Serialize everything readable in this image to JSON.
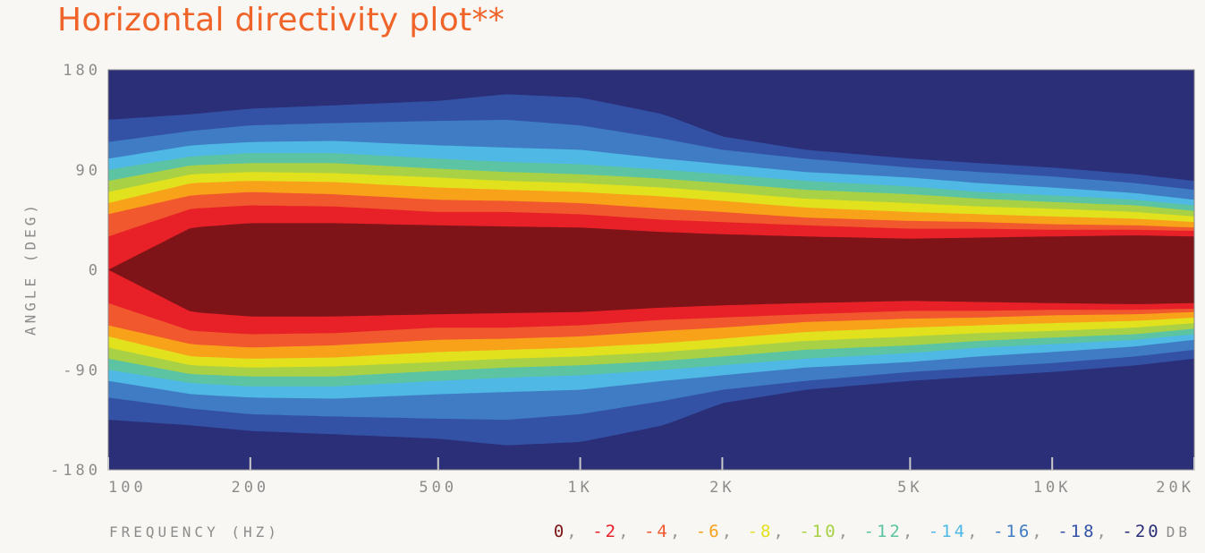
{
  "title": "Horizontal directivity plot**",
  "chart_data": {
    "type": "heatmap",
    "title": "Horizontal directivity plot**",
    "xlabel": "FREQUENCY (HZ)",
    "ylabel": "ANGLE (DEG)",
    "x_scale": "log",
    "xlim": [
      100,
      20000
    ],
    "ylim": [
      -180,
      180
    ],
    "x_ticks": [
      100,
      200,
      500,
      1000,
      2000,
      5000,
      10000,
      20000
    ],
    "x_tick_labels": [
      "100",
      "200",
      "500",
      "1K",
      "2K",
      "5K",
      "10K",
      "20K"
    ],
    "y_ticks": [
      180,
      90,
      0,
      -90,
      -180
    ],
    "y_tick_labels": [
      "180",
      "90",
      "0",
      "-90",
      "-180"
    ],
    "contour_levels_db": [
      0,
      -2,
      -4,
      -6,
      -8,
      -10,
      -12,
      -14,
      -16,
      -18,
      -20
    ],
    "legend_unit": "DB",
    "level_colors": [
      "#7e1418",
      "#e82128",
      "#f1582d",
      "#f8a21a",
      "#e1e11e",
      "#a8d146",
      "#5cc4a2",
      "#4fb8e4",
      "#3f7cc4",
      "#3352a6",
      "#2b2f78"
    ],
    "half_beamwidth_deg_by_level": {
      "frequency_hz": [
        100,
        150,
        200,
        300,
        500,
        700,
        1000,
        1500,
        2000,
        3000,
        5000,
        7000,
        10000,
        15000,
        20000
      ],
      "-2": [
        0,
        38,
        42,
        42,
        40,
        39,
        38,
        34,
        32,
        30,
        28,
        29,
        30,
        31,
        30
      ],
      "-4": [
        30,
        55,
        58,
        57,
        52,
        52,
        50,
        45,
        43,
        40,
        37,
        37,
        36,
        36,
        35
      ],
      "-6": [
        50,
        67,
        70,
        68,
        63,
        62,
        60,
        55,
        52,
        47,
        44,
        43,
        41,
        40,
        38
      ],
      "-8": [
        60,
        78,
        80,
        79,
        74,
        72,
        70,
        66,
        62,
        56,
        52,
        50,
        48,
        46,
        43
      ],
      "-10": [
        70,
        86,
        88,
        87,
        83,
        80,
        78,
        74,
        70,
        64,
        60,
        57,
        55,
        52,
        48
      ],
      "-12": [
        80,
        94,
        96,
        96,
        91,
        88,
        86,
        82,
        78,
        72,
        68,
        64,
        61,
        58,
        53
      ],
      "-14": [
        90,
        102,
        105,
        105,
        100,
        97,
        95,
        90,
        86,
        80,
        75,
        70,
        67,
        63,
        58
      ],
      "-16": [
        100,
        112,
        115,
        116,
        112,
        110,
        108,
        100,
        95,
        88,
        83,
        78,
        74,
        69,
        63
      ],
      "-18": [
        115,
        125,
        130,
        132,
        134,
        135,
        130,
        118,
        108,
        100,
        92,
        88,
        84,
        78,
        72
      ],
      "-20": [
        135,
        140,
        145,
        148,
        152,
        158,
        155,
        140,
        120,
        108,
        100,
        96,
        92,
        86,
        80
      ]
    }
  }
}
